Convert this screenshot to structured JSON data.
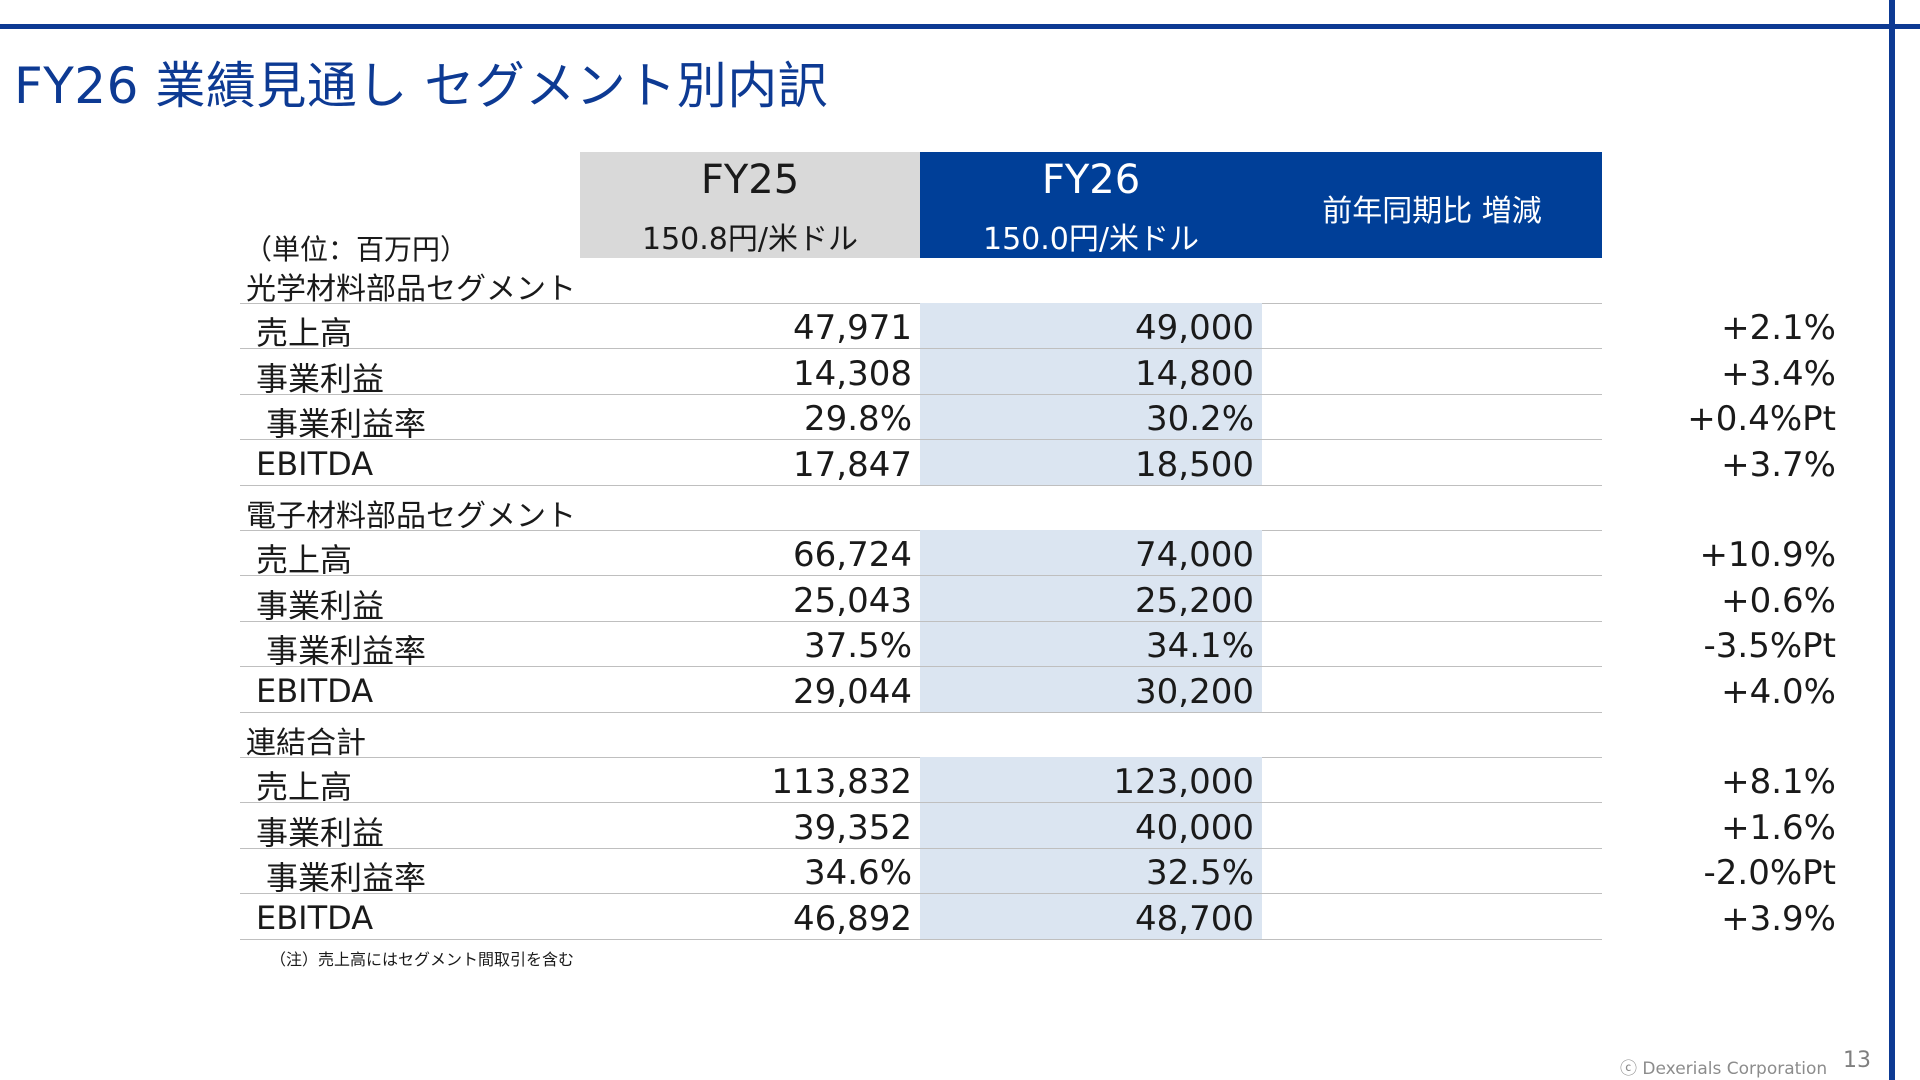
{
  "title": "FY26 業績見通し セグメント別内訳",
  "unit": "（単位：百万円）",
  "header": {
    "fy25": {
      "year": "FY25",
      "rate": "150.8円/米ドル"
    },
    "fy26": {
      "year": "FY26",
      "rate": "150.0円/米ドル"
    },
    "yoy": "前年同期比 増減"
  },
  "segments": [
    {
      "name": "光学材料部品セグメント",
      "rows": [
        {
          "label": "売上高",
          "fy25": "47,971",
          "fy26": "49,000",
          "yoy": "+2.1%"
        },
        {
          "label": "事業利益",
          "fy25": "14,308",
          "fy26": "14,800",
          "yoy": "+3.4%"
        },
        {
          "label": "事業利益率",
          "fy25": "29.8%",
          "fy26": "30.2%",
          "yoy": "+0.4%Pt"
        },
        {
          "label": "EBITDA",
          "fy25": "17,847",
          "fy26": "18,500",
          "yoy": "+3.7%"
        }
      ]
    },
    {
      "name": "電子材料部品セグメント",
      "rows": [
        {
          "label": "売上高",
          "fy25": "66,724",
          "fy26": "74,000",
          "yoy": "+10.9%"
        },
        {
          "label": "事業利益",
          "fy25": "25,043",
          "fy26": "25,200",
          "yoy": "+0.6%"
        },
        {
          "label": "事業利益率",
          "fy25": "37.5%",
          "fy26": "34.1%",
          "yoy": "-3.5%Pt"
        },
        {
          "label": "EBITDA",
          "fy25": "29,044",
          "fy26": "30,200",
          "yoy": "+4.0%"
        }
      ]
    },
    {
      "name": "連結合計",
      "rows": [
        {
          "label": "売上高",
          "fy25": "113,832",
          "fy26": "123,000",
          "yoy": "+8.1%"
        },
        {
          "label": "事業利益",
          "fy25": "39,352",
          "fy26": "40,000",
          "yoy": "+1.6%"
        },
        {
          "label": "事業利益率",
          "fy25": "34.6%",
          "fy26": "32.5%",
          "yoy": "-2.0%Pt"
        },
        {
          "label": "EBITDA",
          "fy25": "46,892",
          "fy26": "48,700",
          "yoy": "+3.9%"
        }
      ]
    }
  ],
  "footnote": "（注）売上高にはセグメント間取引を含む",
  "copyright": "ⓒ Dexerials Corporation",
  "page_number": "13",
  "colors": {
    "brand": "#0d3a93",
    "header_fy26": "#003f98",
    "header_fy25": "#d9d9d9",
    "fy26_band": "#dbe5f1"
  }
}
